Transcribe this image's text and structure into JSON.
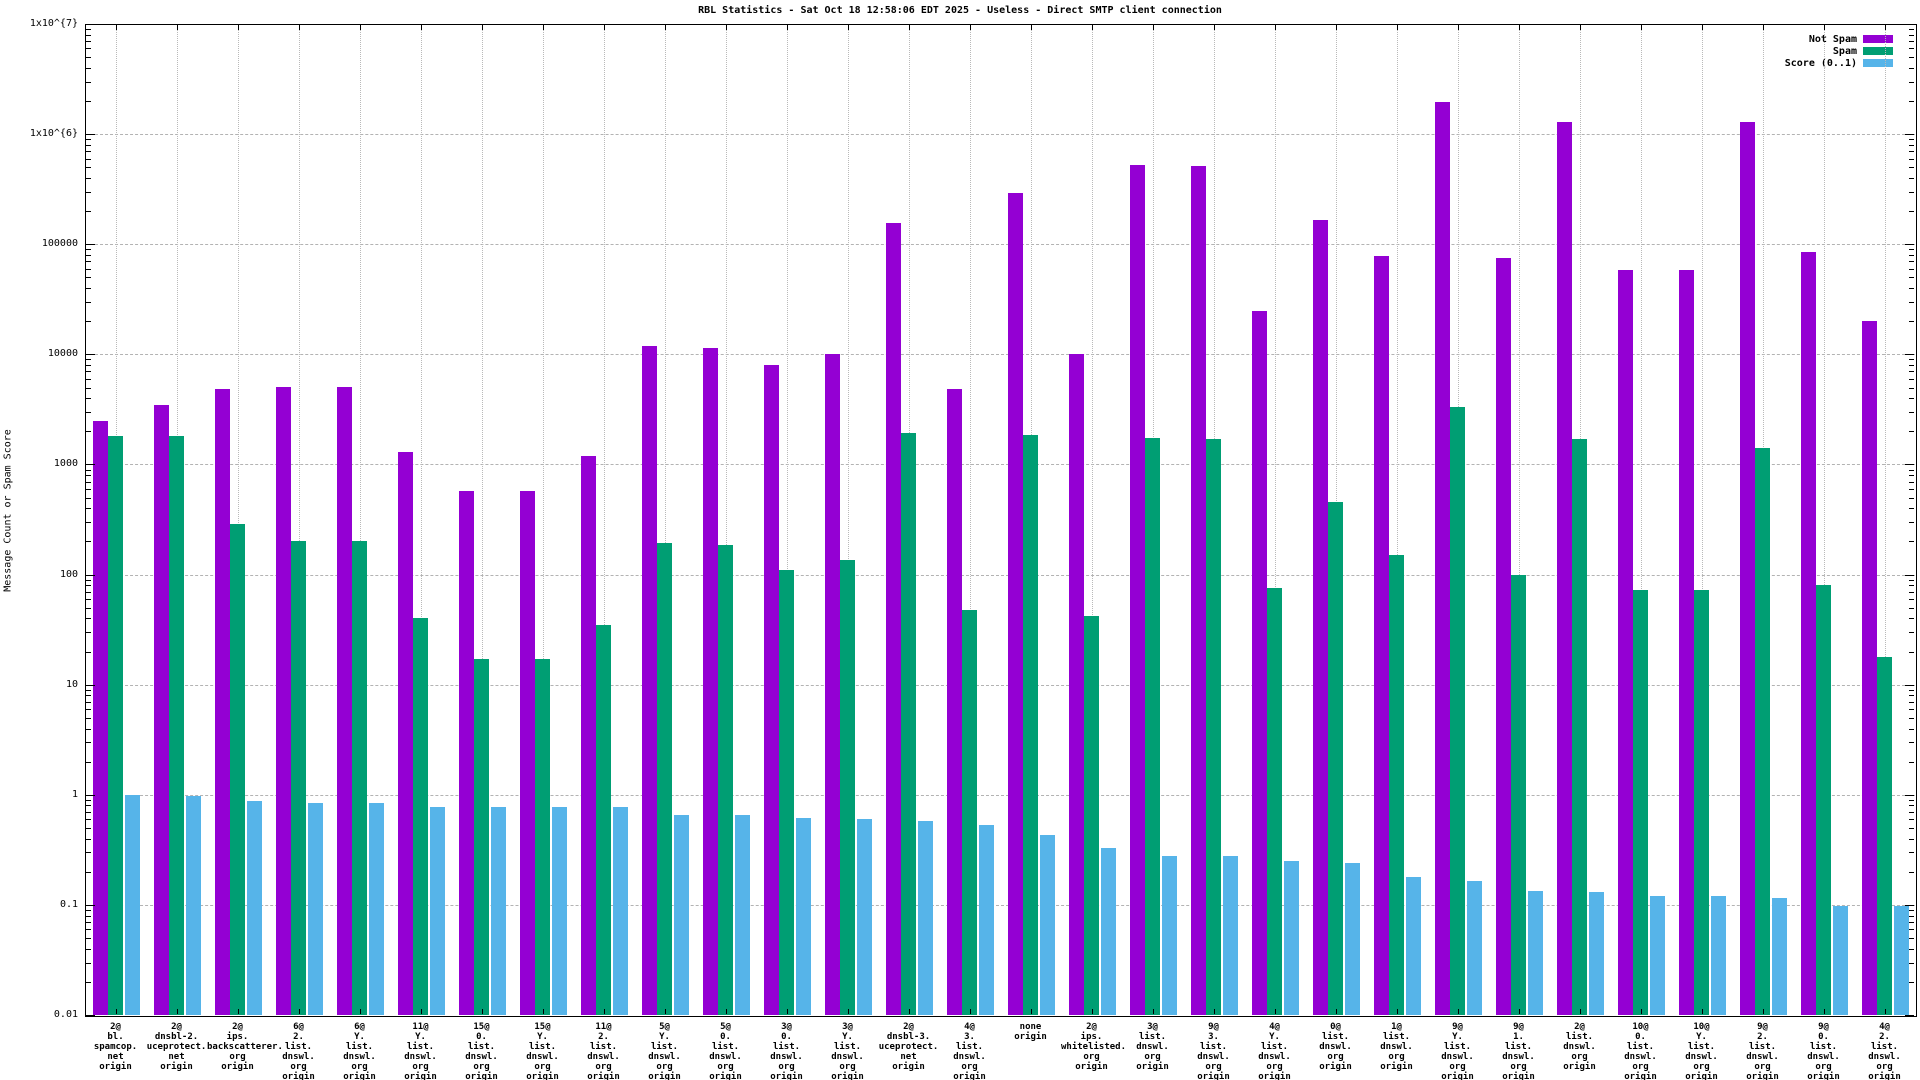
{
  "chart_data": {
    "type": "bar",
    "title": "RBL Statistics - Sat Oct 18 12:58:06 EDT 2025 - Useless - Direct SMTP client connection",
    "ylabel": "Message Count or Spam Score",
    "yscale": "log",
    "ylim": [
      0.01,
      10000000
    ],
    "ytick_labels": [
      "1x10^{7}",
      "1x10^{6}",
      "100000",
      "10000",
      "1000",
      "100",
      "10",
      "1",
      "0.1",
      "0.01"
    ],
    "grid": true,
    "legend_position": "top-right",
    "categories": [
      [
        "2@",
        "bl.",
        "spamcop.",
        "net",
        "origin"
      ],
      [
        "2@",
        "dnsbl-2.",
        "uceprotect.",
        "net",
        "origin"
      ],
      [
        "2@",
        "ips.",
        "backscatterer.",
        "org",
        "origin"
      ],
      [
        "6@",
        "2.",
        "list.",
        "dnswl.",
        "org",
        "origin"
      ],
      [
        "6@",
        "Y.",
        "list.",
        "dnswl.",
        "org",
        "origin"
      ],
      [
        "11@",
        "Y.",
        "list.",
        "dnswl.",
        "org",
        "origin"
      ],
      [
        "15@",
        "0.",
        "list.",
        "dnswl.",
        "org",
        "origin"
      ],
      [
        "15@",
        "Y.",
        "list.",
        "dnswl.",
        "org",
        "origin"
      ],
      [
        "11@",
        "2.",
        "list.",
        "dnswl.",
        "org",
        "origin"
      ],
      [
        "5@",
        "Y.",
        "list.",
        "dnswl.",
        "org",
        "origin"
      ],
      [
        "5@",
        "0.",
        "list.",
        "dnswl.",
        "org",
        "origin"
      ],
      [
        "3@",
        "0.",
        "list.",
        "dnswl.",
        "org",
        "origin"
      ],
      [
        "3@",
        "Y.",
        "list.",
        "dnswl.",
        "org",
        "origin"
      ],
      [
        "2@",
        "dnsbl-3.",
        "uceprotect.",
        "net",
        "origin"
      ],
      [
        "4@",
        "3.",
        "list.",
        "dnswl.",
        "org",
        "origin"
      ],
      [
        "none",
        "origin"
      ],
      [
        "2@",
        "ips.",
        "whitelisted.",
        "org",
        "origin"
      ],
      [
        "3@",
        "list.",
        "dnswl.",
        "org",
        "origin"
      ],
      [
        "9@",
        "3.",
        "list.",
        "dnswl.",
        "org",
        "origin"
      ],
      [
        "4@",
        "Y.",
        "list.",
        "dnswl.",
        "org",
        "origin"
      ],
      [
        "0@",
        "list.",
        "dnswl.",
        "org",
        "origin"
      ],
      [
        "1@",
        "list.",
        "dnswl.",
        "org",
        "origin"
      ],
      [
        "9@",
        "Y.",
        "list.",
        "dnswl.",
        "org",
        "origin"
      ],
      [
        "9@",
        "1.",
        "list.",
        "dnswl.",
        "org",
        "origin"
      ],
      [
        "2@",
        "list.",
        "dnswl.",
        "org",
        "origin"
      ],
      [
        "10@",
        "0.",
        "list.",
        "dnswl.",
        "org",
        "origin"
      ],
      [
        "10@",
        "Y.",
        "list.",
        "dnswl.",
        "org",
        "origin"
      ],
      [
        "9@",
        "2.",
        "list.",
        "dnswl.",
        "org",
        "origin"
      ],
      [
        "9@",
        "0.",
        "list.",
        "dnswl.",
        "org",
        "origin"
      ],
      [
        "4@",
        "2.",
        "list.",
        "dnswl.",
        "org",
        "origin"
      ]
    ],
    "series": [
      {
        "name": "Not Spam",
        "color": "#9400d3",
        "values": [
          2500,
          3500,
          4800,
          5100,
          5100,
          1300,
          580,
          580,
          1200,
          12000,
          11500,
          8000,
          10000,
          155000,
          4800,
          290000,
          10000,
          520000,
          510000,
          25000,
          165000,
          78000,
          1950000,
          75000,
          1300000,
          58000,
          58000,
          1300000,
          85000,
          20000
        ]
      },
      {
        "name": "Spam",
        "color": "#009e73",
        "values": [
          1800,
          1800,
          290,
          200,
          200,
          40,
          17,
          17,
          35,
          195,
          185,
          110,
          135,
          1950,
          48,
          1850,
          42,
          1750,
          1700,
          75,
          460,
          150,
          3300,
          100,
          1700,
          72,
          72,
          1400,
          80,
          18
        ]
      },
      {
        "name": "Score (0..1)",
        "color": "#56b4e9",
        "values": [
          1.0,
          0.97,
          0.88,
          0.85,
          0.84,
          0.78,
          0.78,
          0.78,
          0.78,
          0.65,
          0.65,
          0.62,
          0.6,
          0.58,
          0.53,
          0.43,
          0.33,
          0.28,
          0.28,
          0.25,
          0.24,
          0.18,
          0.165,
          0.135,
          0.13,
          0.12,
          0.12,
          0.115,
          0.098,
          0.097
        ]
      }
    ]
  }
}
